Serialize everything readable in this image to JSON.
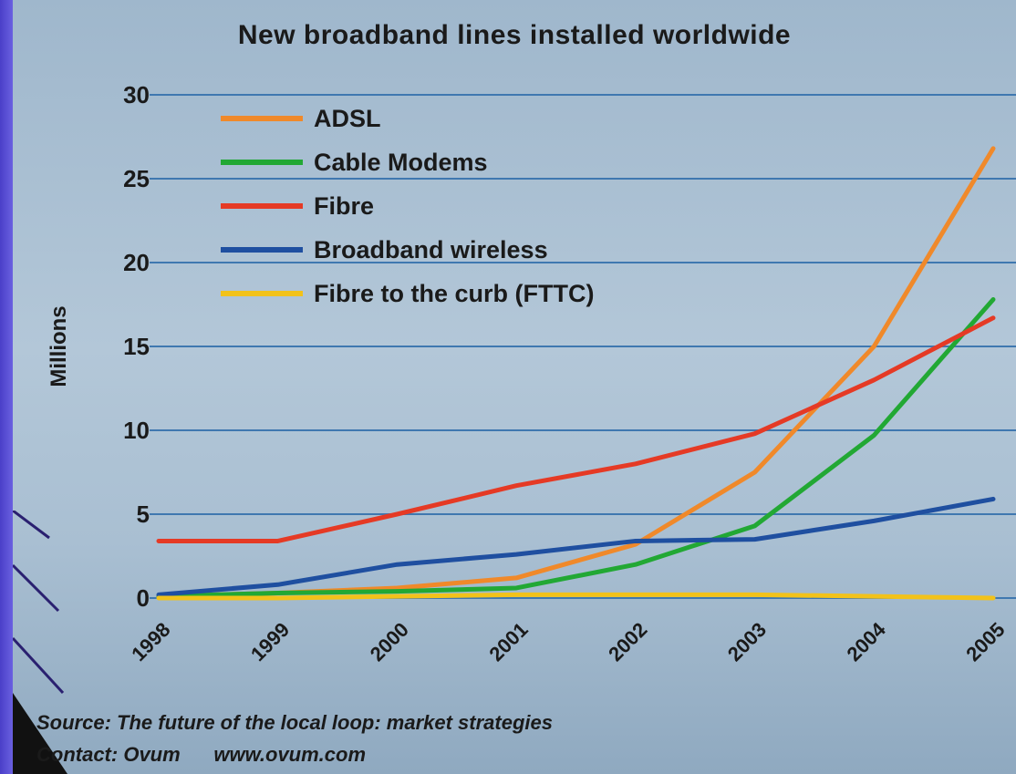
{
  "chart_data": {
    "type": "line",
    "title": "New broadband lines installed worldwide",
    "ylabel": "Millions",
    "xlabel": "",
    "x": [
      "1998",
      "1999",
      "2000",
      "2001",
      "2002",
      "2003",
      "2004",
      "2005"
    ],
    "ylim": [
      0,
      30
    ],
    "yticks": [
      0,
      5,
      10,
      15,
      20,
      25,
      30
    ],
    "grid": true,
    "legend_position": "top-left",
    "series": [
      {
        "name": "ADSL",
        "color": "#f0892a",
        "values": [
          0.1,
          0.3,
          0.6,
          1.2,
          3.2,
          7.5,
          15,
          26.8
        ]
      },
      {
        "name": "Cable Modems",
        "color": "#22a834",
        "values": [
          0.1,
          0.3,
          0.4,
          0.6,
          2.0,
          4.3,
          9.7,
          17.8
        ]
      },
      {
        "name": "Fibre",
        "color": "#e53a25",
        "values": [
          3.4,
          3.4,
          5.0,
          6.7,
          8.0,
          9.8,
          13.0,
          16.7
        ]
      },
      {
        "name": "Broadband wireless",
        "color": "#1f4fa0",
        "values": [
          0.2,
          0.8,
          2.0,
          2.6,
          3.4,
          3.5,
          4.6,
          5.9
        ]
      },
      {
        "name": "Fibre to the curb (FTTC)",
        "color": "#f2c21a",
        "values": [
          0,
          0,
          0.1,
          0.2,
          0.2,
          0.2,
          0.1,
          0
        ]
      }
    ]
  },
  "source_text": "Source: The future of the local loop: market strategies",
  "contact_label": "Contact: Ovum",
  "contact_url": "www.ovum.com"
}
